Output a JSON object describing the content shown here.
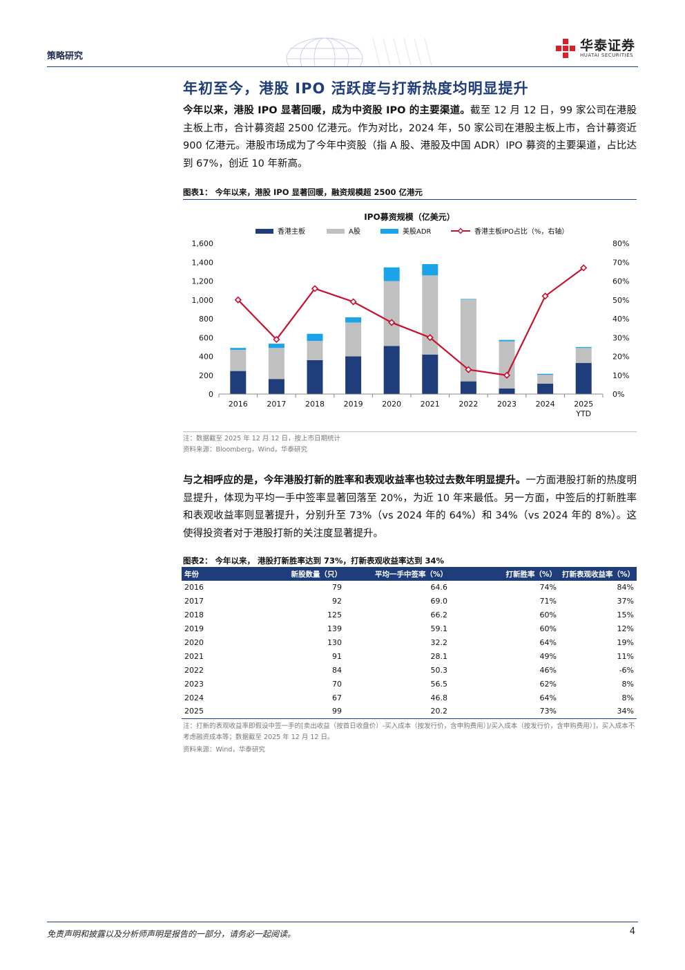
{
  "header": {
    "section": "策略研究",
    "brand_cn": "华泰证券",
    "brand_en": "HUATAI SECURITIES"
  },
  "title": "年初至今，港股 IPO 活跃度与打新热度均明显提升",
  "para1": {
    "bold": "今年以来，港股 IPO 显著回暖，成为中资股 IPO 的主要渠道。",
    "text": "截至 12 月 12 日，99 家公司在港股主板上市，合计募资超 2500 亿港元。作为对比，2024 年，50 家公司在港股主板上市，合计募资近 900 亿港元。港股市场成为了今年中资股（指 A 股、港股及中国 ADR）IPO 募资的主要渠道，占比达到 67%，创近 10 年新高。"
  },
  "figure1": {
    "caption": "图表1：  今年以来，港股 IPO 显著回暖，融资规模超 2500 亿港元",
    "note": "注：数据截至 2025 年 12 月 12 日，按上市日期统计",
    "source": "资料来源：Bloomberg，Wind，华泰研究"
  },
  "chart_data": {
    "type": "bar",
    "title": "IPO募资规模（亿美元）",
    "categories": [
      "2016",
      "2017",
      "2018",
      "2019",
      "2020",
      "2021",
      "2022",
      "2023",
      "2024",
      "2025\nYTD"
    ],
    "series": [
      {
        "name": "香港主板",
        "kind": "stacked-bar",
        "color": "#1f3d7a",
        "values": [
          245,
          160,
          360,
          400,
          510,
          420,
          135,
          60,
          110,
          330
        ]
      },
      {
        "name": "A股",
        "kind": "stacked-bar",
        "color": "#c0c0c0",
        "values": [
          225,
          330,
          205,
          360,
          690,
          840,
          870,
          500,
          95,
          160
        ]
      },
      {
        "name": "美股ADR",
        "kind": "stacked-bar",
        "color": "#1aa3e8",
        "values": [
          20,
          45,
          75,
          55,
          145,
          120,
          5,
          15,
          10,
          10
        ]
      },
      {
        "name": "香港主板IPO占比（%，右轴）",
        "kind": "line",
        "axis": "right",
        "color": "#c8102e",
        "values": [
          50,
          29,
          56,
          49,
          38,
          30,
          13,
          10,
          52,
          67
        ]
      }
    ],
    "ylim": [
      0,
      1600
    ],
    "yticks": [
      "0",
      "200",
      "400",
      "600",
      "800",
      "1,000",
      "1,200",
      "1,400",
      "1,600"
    ],
    "y2lim": [
      0,
      80
    ],
    "y2ticks": [
      "0%",
      "10%",
      "20%",
      "30%",
      "40%",
      "50%",
      "60%",
      "70%",
      "80%"
    ],
    "legend_position": "top"
  },
  "para2": {
    "bold": "与之相呼应的是，今年港股打新的胜率和表观收益率也较过去数年明显提升。",
    "text": "一方面港股打新的热度明显提升，体现为平均一手中签率显著回落至 20%，为近 10 年来最低。另一方面，中签后的打新胜率和表观收益率则显著提升，分别升至 73%（vs 2024 年的 64%）和 34%（vs 2024 年的 8%）。这使得投资者对于港股打新的关注度显著提升。"
  },
  "figure2": {
    "caption": "图表2：  今年以来，  港股打新胜率达到 73%，打新表观收益率达到 34%",
    "headers": [
      "年份",
      "新股数量（只）",
      "平均一手中签率（%）",
      "打新胜率（%）",
      "打新表观收益率（%）"
    ],
    "rows": [
      [
        "2016",
        "79",
        "64.6",
        "74%",
        "84%"
      ],
      [
        "2017",
        "92",
        "69.0",
        "71%",
        "37%"
      ],
      [
        "2018",
        "125",
        "66.2",
        "60%",
        "15%"
      ],
      [
        "2019",
        "139",
        "59.1",
        "60%",
        "12%"
      ],
      [
        "2020",
        "130",
        "32.2",
        "64%",
        "19%"
      ],
      [
        "2021",
        "91",
        "28.1",
        "49%",
        "11%"
      ],
      [
        "2022",
        "84",
        "50.3",
        "46%",
        "-6%"
      ],
      [
        "2023",
        "70",
        "56.5",
        "62%",
        "8%"
      ],
      [
        "2024",
        "67",
        "46.8",
        "64%",
        "8%"
      ],
      [
        "2025",
        "99",
        "20.2",
        "73%",
        "34%"
      ]
    ],
    "note": "注：打新的表观收益率即假设中签一手的[卖出收益（按首日收盘价）-买入成本（按发行价，含申购费用）]/买入成本（按发行价，含申购费用）]，买入成本不考虑融资成本等；数据截至 2025 年 12 月 12 日。",
    "source": "资料来源：Wind，华泰研究"
  },
  "footer": {
    "disclaimer": "免责声明和披露以及分析师声明是报告的一部分，请务必一起阅读。",
    "page": "4"
  }
}
